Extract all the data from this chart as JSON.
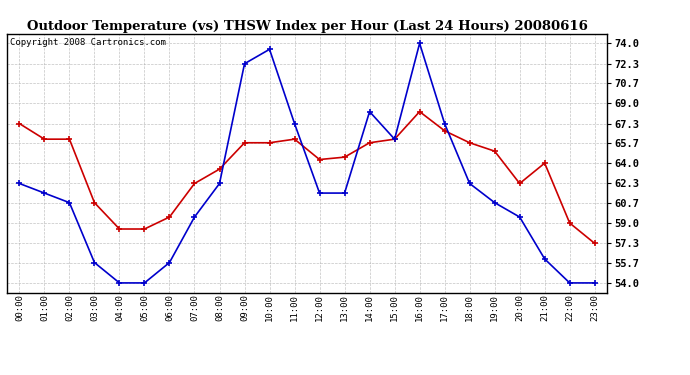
{
  "title": "Outdoor Temperature (vs) THSW Index per Hour (Last 24 Hours) 20080616",
  "copyright": "Copyright 2008 Cartronics.com",
  "hours": [
    "00:00",
    "01:00",
    "02:00",
    "03:00",
    "04:00",
    "05:00",
    "06:00",
    "07:00",
    "08:00",
    "09:00",
    "10:00",
    "11:00",
    "12:00",
    "13:00",
    "14:00",
    "15:00",
    "16:00",
    "17:00",
    "18:00",
    "19:00",
    "20:00",
    "21:00",
    "22:00",
    "23:00"
  ],
  "outdoor_temp": [
    67.3,
    66.0,
    66.0,
    60.7,
    58.5,
    58.5,
    59.5,
    62.3,
    63.5,
    65.7,
    65.7,
    66.0,
    64.3,
    64.5,
    65.7,
    66.0,
    68.3,
    66.7,
    65.7,
    65.0,
    62.3,
    64.0,
    59.0,
    57.3
  ],
  "thsw_index": [
    62.3,
    61.5,
    60.7,
    55.7,
    54.0,
    54.0,
    55.7,
    59.5,
    62.3,
    72.3,
    73.5,
    67.3,
    61.5,
    61.5,
    68.3,
    66.0,
    74.0,
    67.3,
    62.3,
    60.7,
    59.5,
    56.0,
    54.0,
    54.0
  ],
  "outdoor_color": "#cc0000",
  "thsw_color": "#0000cc",
  "bg_color": "#ffffff",
  "grid_color": "#aaaaaa",
  "yticks": [
    54.0,
    55.7,
    57.3,
    59.0,
    60.7,
    62.3,
    64.0,
    65.7,
    67.3,
    69.0,
    70.7,
    72.3,
    74.0
  ],
  "ymin": 53.2,
  "ymax": 74.8
}
